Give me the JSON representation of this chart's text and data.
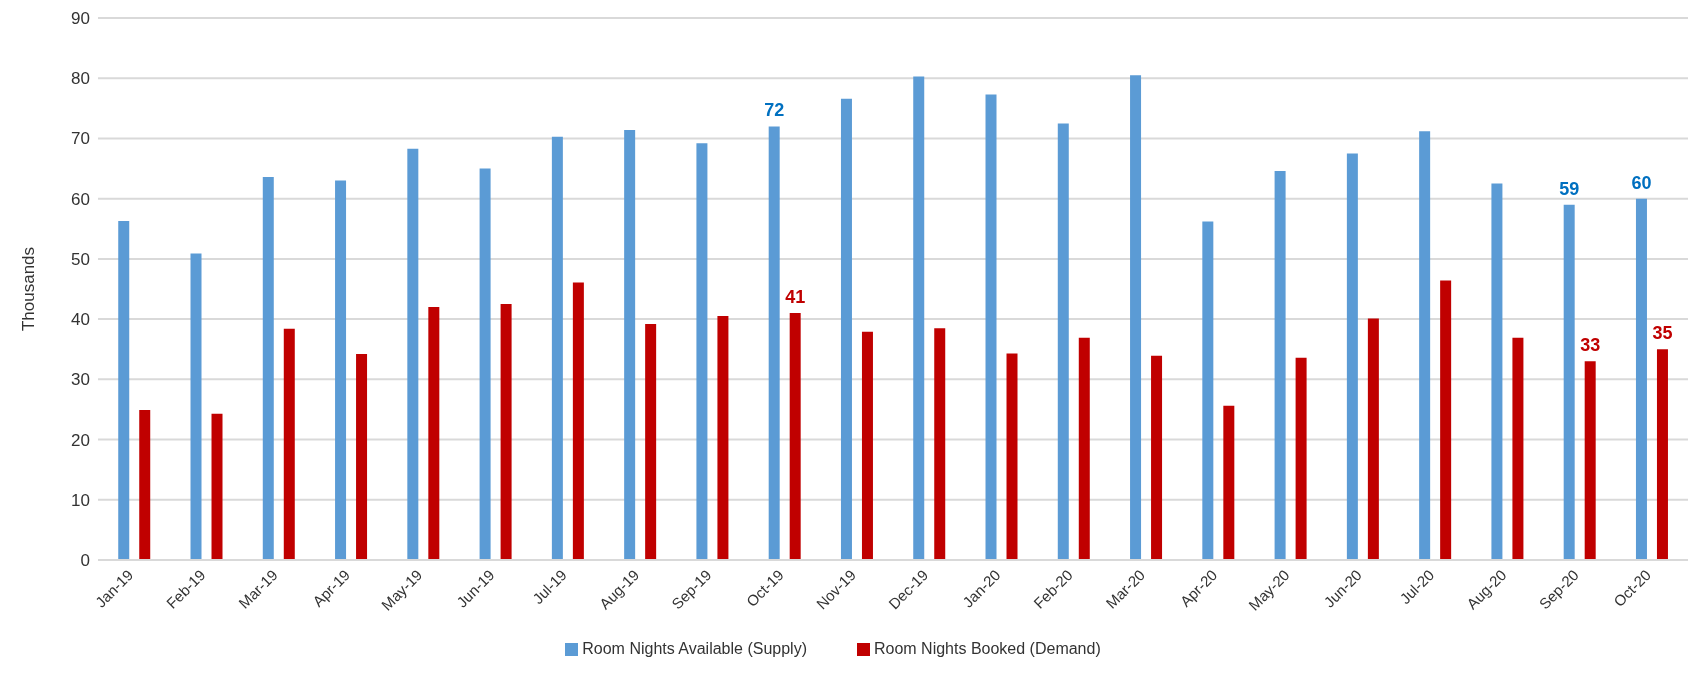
{
  "chart_data": {
    "type": "bar",
    "ylabel": "Thousands",
    "categories": [
      "Jan-19",
      "Feb-19",
      "Mar-19",
      "Apr-19",
      "May-19",
      "Jun-19",
      "Jul-19",
      "Aug-19",
      "Sep-19",
      "Oct-19",
      "Nov-19",
      "Dec-19",
      "Jan-20",
      "Feb-20",
      "Mar-20",
      "Apr-20",
      "May-20",
      "Jun-20",
      "Jul-20",
      "Aug-20",
      "Sep-20",
      "Oct-20"
    ],
    "series": [
      {
        "name": "Room Nights Available (Supply)",
        "color": "#5b9bd5",
        "values": [
          56.3,
          50.9,
          63.6,
          63.0,
          68.3,
          65.0,
          70.3,
          71.4,
          69.2,
          72,
          76.6,
          80.3,
          77.3,
          72.5,
          80.5,
          56.2,
          64.6,
          67.5,
          71.2,
          62.5,
          59,
          60
        ],
        "value_labels": [
          null,
          null,
          null,
          null,
          null,
          null,
          null,
          null,
          null,
          "72",
          null,
          null,
          null,
          null,
          null,
          null,
          null,
          null,
          null,
          null,
          "59",
          "60"
        ]
      },
      {
        "name": "Room Nights Booked (Demand)",
        "color": "#c00000",
        "values": [
          24.9,
          24.3,
          38.4,
          34.2,
          42.0,
          42.5,
          46.1,
          39.2,
          40.5,
          41,
          37.9,
          38.5,
          34.3,
          36.9,
          33.9,
          25.6,
          33.6,
          40.1,
          46.4,
          36.9,
          33,
          35
        ],
        "value_labels": [
          null,
          null,
          null,
          null,
          null,
          null,
          null,
          null,
          null,
          "41",
          null,
          null,
          null,
          null,
          null,
          null,
          null,
          null,
          null,
          null,
          "33",
          "35"
        ]
      }
    ],
    "ylim": [
      0,
      90
    ],
    "yticks": [
      0,
      10,
      20,
      30,
      40,
      50,
      60,
      70,
      80,
      90
    ],
    "grid": "y",
    "legend": "bottom"
  }
}
